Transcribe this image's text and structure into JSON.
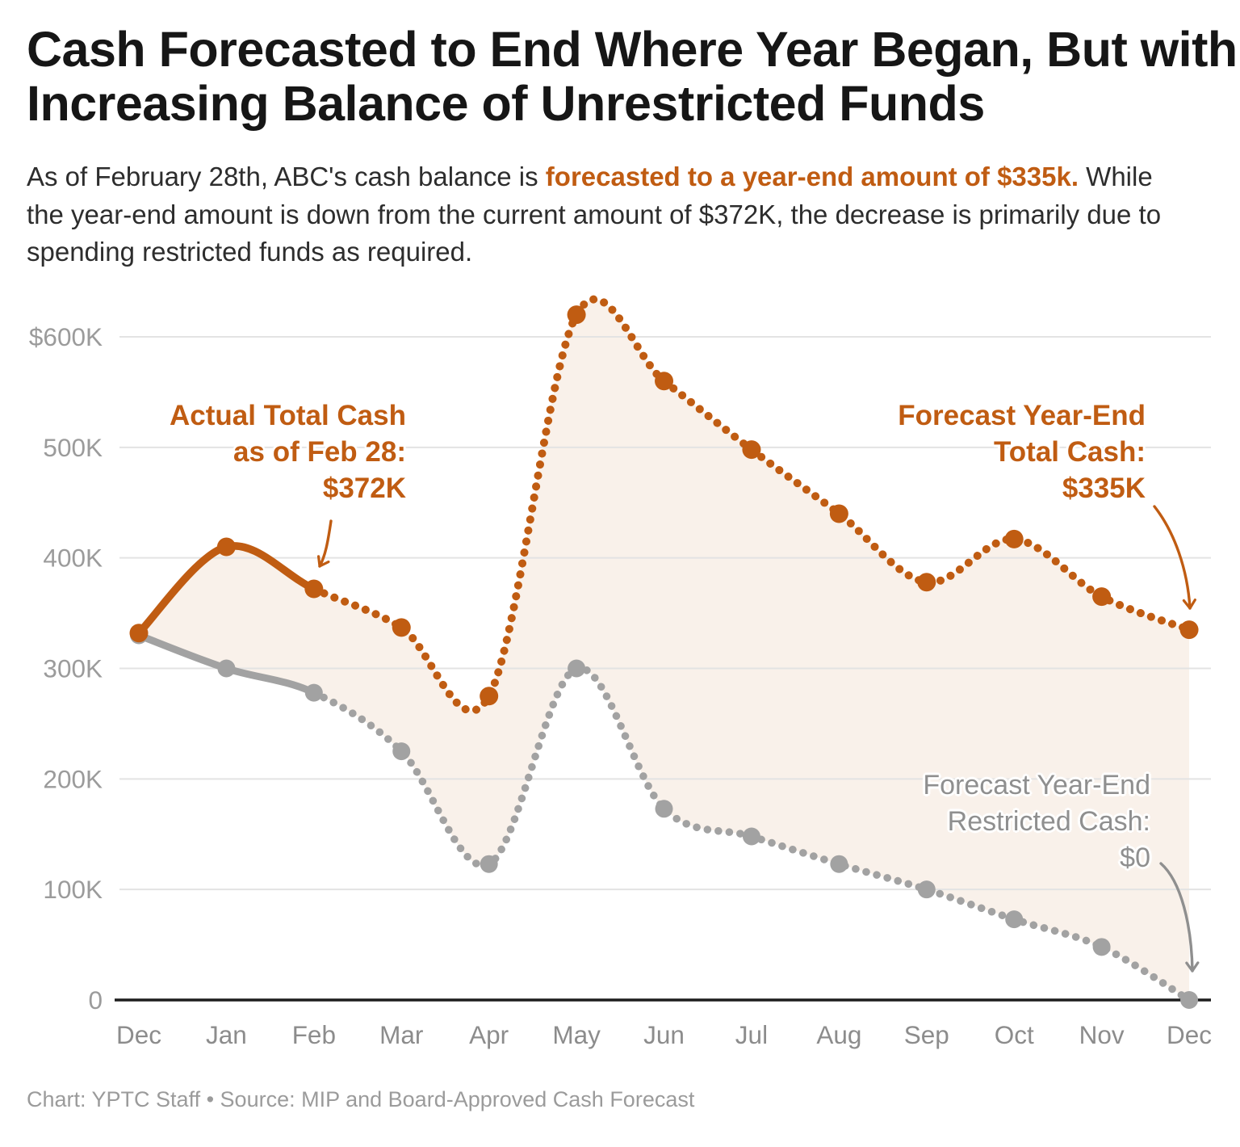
{
  "header": {
    "title_lines": [
      "Cash Forecasted to End Where Year Began, But with",
      "Increasing Balance of Unrestricted Funds"
    ],
    "subtitle_segments": [
      {
        "text": "As of February 28th, ABC's cash balance is ",
        "bold": false
      },
      {
        "text": "forecasted to a year-end amount of $335k.",
        "bold": true
      },
      {
        "text": " While the year-end amount is down from the current amount of $372K, the decrease is primarily due to spending restricted funds as required.",
        "bold": false
      }
    ]
  },
  "footer": {
    "credit": "Chart: YPTC Staff • Source: MIP and Board-Approved Cash Forecast"
  },
  "colors": {
    "accent_orange": "#C05C12",
    "series_gray": "#A2A2A2",
    "annotation_gray": "#8f8f8f",
    "area_fill": "#F9F1EA",
    "gridline": "#E3E3E3",
    "axis_line": "#1d1d1d",
    "axis_label": "#9b9b9b",
    "x_label": "#8c8c8c"
  },
  "chart_data": {
    "type": "line",
    "title": "Cash Forecasted to End Where Year Began, But with Increasing Balance of Unrestricted Funds",
    "xlabel": "",
    "ylabel": "",
    "x": [
      "Dec",
      "Jan",
      "Feb",
      "Mar",
      "Apr",
      "May",
      "Jun",
      "Jul",
      "Aug",
      "Sep",
      "Oct",
      "Nov",
      "Dec"
    ],
    "ylim": [
      0,
      640
    ],
    "grid": "horizontal",
    "legend_position": "none",
    "y_ticks": [
      {
        "label": "$600K",
        "value": 600
      },
      {
        "label": "500K",
        "value": 500
      },
      {
        "label": "400K",
        "value": 400
      },
      {
        "label": "300K",
        "value": 300
      },
      {
        "label": "200K",
        "value": 200
      },
      {
        "label": "100K",
        "value": 100
      },
      {
        "label": "0",
        "value": 0
      }
    ],
    "actual_through_index": 2,
    "series": [
      {
        "name": "Total Cash",
        "color": "#C05C12",
        "style": "solid actual (Dec-Feb), dotted forecast (Feb-Dec)",
        "values_k": [
          332,
          410,
          372,
          337,
          275,
          620,
          560,
          498,
          440,
          378,
          417,
          365,
          335
        ]
      },
      {
        "name": "Restricted Cash",
        "color": "#A2A2A2",
        "style": "solid actual (Dec-Feb), dotted forecast (Feb-Dec)",
        "values_k": [
          330,
          300,
          278,
          225,
          123,
          300,
          173,
          148,
          123,
          100,
          73,
          48,
          0
        ]
      }
    ],
    "annotations": {
      "actual_total": {
        "lines": [
          "Actual Total Cash",
          "as of Feb 28:",
          "$372K"
        ],
        "color": "#C05C12"
      },
      "forecast_total": {
        "lines": [
          "Forecast Year-End",
          "Total Cash:",
          "$335K"
        ],
        "color": "#C05C12"
      },
      "forecast_restricted": {
        "lines": [
          "Forecast Year-End",
          "Restricted Cash:",
          "$0"
        ],
        "color": "#8f8f8f"
      }
    }
  }
}
